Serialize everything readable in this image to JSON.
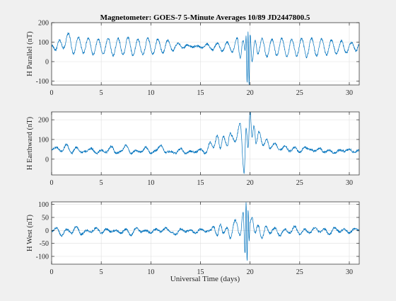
{
  "figure": {
    "title": "Magnetometer: GOES-7 5-Minute Averages 10/89 JD2447800.5",
    "xlabel": "Universal Time (days)"
  },
  "colors": {
    "background": "#f0f0f0",
    "axes_face": "#ffffff",
    "axes_line": "#262626",
    "grid": "#dfdfdf",
    "series": "#0072bd"
  },
  "chart_data": [
    {
      "type": "line",
      "ylabel": "H Parallel (nT)",
      "xlim": [
        0,
        31
      ],
      "ylim": [
        -120,
        200
      ],
      "xticks": [
        0,
        5,
        10,
        15,
        20,
        25,
        30
      ],
      "yticks": [
        -100,
        0,
        100,
        200
      ],
      "grid": true,
      "series": [
        {
          "t": [
            0,
            0.4,
            0.8,
            1.2,
            1.7,
            2.2,
            2.7,
            3.2,
            3.7,
            4.2,
            4.7,
            5.2,
            5.7,
            6.2,
            6.7,
            7.2,
            7.7,
            8.2,
            8.7,
            9.2,
            9.7,
            10.2,
            10.7,
            11.2,
            11.7,
            12.2,
            12.7,
            13.2,
            13.7,
            14.2,
            14.7,
            15.2,
            15.7,
            16.2,
            16.7,
            17.2,
            17.7,
            18.2,
            18.7,
            19.0,
            19.3,
            19.5,
            19.6,
            19.7,
            19.8,
            19.9,
            20.0,
            20.2,
            20.5,
            20.8,
            21.2,
            21.7,
            22.2,
            22.7,
            23.2,
            23.7,
            24.2,
            24.7,
            25.2,
            25.7,
            26.2,
            26.7,
            27.2,
            27.7,
            28.2,
            28.7,
            29.2,
            29.7,
            30.2,
            30.7,
            31
          ],
          "values": [
            85,
            60,
            110,
            70,
            145,
            40,
            125,
            45,
            120,
            35,
            115,
            40,
            120,
            30,
            120,
            35,
            125,
            30,
            115,
            35,
            120,
            40,
            115,
            45,
            110,
            55,
            95,
            70,
            85,
            75,
            80,
            70,
            90,
            60,
            95,
            55,
            100,
            50,
            120,
            20,
            110,
            60,
            130,
            -110,
            150,
            -120,
            140,
            0,
            110,
            40,
            120,
            25,
            115,
            30,
            120,
            25,
            115,
            30,
            120,
            25,
            120,
            30,
            115,
            35,
            110,
            40,
            105,
            45,
            100,
            55,
            90
          ]
        }
      ]
    },
    {
      "type": "line",
      "ylabel": "H Earthward (nT)",
      "xlim": [
        0,
        31
      ],
      "ylim": [
        -80,
        240
      ],
      "xticks": [
        0,
        5,
        10,
        15,
        20,
        25,
        30
      ],
      "yticks": [
        0,
        100,
        200
      ],
      "grid": true,
      "series": [
        {
          "t": [
            0,
            0.5,
            1.0,
            1.5,
            2.0,
            2.5,
            3.0,
            3.5,
            4.0,
            4.5,
            5.0,
            5.5,
            6.0,
            6.5,
            7.0,
            7.5,
            8.0,
            8.5,
            9.0,
            9.5,
            10.0,
            10.5,
            11.0,
            11.5,
            12.0,
            12.5,
            13.0,
            13.5,
            14.0,
            14.5,
            15.0,
            15.5,
            16.0,
            16.3,
            16.7,
            17.0,
            17.3,
            17.7,
            18.0,
            18.5,
            19.0,
            19.4,
            19.6,
            19.8,
            20.0,
            20.2,
            20.4,
            20.6,
            20.9,
            21.3,
            21.7,
            22.0,
            22.5,
            23.0,
            23.5,
            24.0,
            24.5,
            25.0,
            25.5,
            26.0,
            26.5,
            27.0,
            27.5,
            28.0,
            28.5,
            29.0,
            29.5,
            30.0,
            30.5,
            31
          ],
          "values": [
            50,
            60,
            40,
            75,
            30,
            60,
            35,
            40,
            55,
            30,
            45,
            35,
            65,
            30,
            40,
            70,
            30,
            45,
            35,
            60,
            30,
            45,
            70,
            35,
            40,
            30,
            55,
            30,
            40,
            35,
            50,
            30,
            85,
            60,
            120,
            55,
            115,
            70,
            130,
            90,
            180,
            -70,
            160,
            60,
            245,
            110,
            170,
            80,
            140,
            70,
            100,
            55,
            80,
            45,
            65,
            40,
            60,
            35,
            60,
            50,
            40,
            55,
            35,
            45,
            30,
            45,
            40,
            50,
            35,
            45
          ]
        }
      ]
    },
    {
      "type": "line",
      "ylabel": "H West (nT)",
      "xlim": [
        0,
        31
      ],
      "ylim": [
        -130,
        110
      ],
      "xticks": [
        0,
        5,
        10,
        15,
        20,
        25,
        30
      ],
      "yticks": [
        -100,
        -50,
        0,
        50,
        100
      ],
      "grid": true,
      "series": [
        {
          "t": [
            0,
            0.5,
            1.0,
            1.5,
            2.0,
            2.5,
            3.0,
            3.5,
            4.0,
            4.5,
            5.0,
            5.5,
            6.0,
            6.5,
            7.0,
            7.5,
            8.0,
            8.5,
            9.0,
            9.5,
            10.0,
            10.5,
            11.0,
            11.5,
            12.0,
            12.5,
            13.0,
            13.5,
            14.0,
            14.5,
            15.0,
            15.5,
            16.0,
            16.3,
            16.7,
            17.0,
            17.3,
            17.7,
            18.0,
            18.5,
            19.0,
            19.3,
            19.5,
            19.6,
            19.7,
            19.8,
            19.9,
            20.0,
            20.2,
            20.5,
            20.8,
            21.2,
            21.6,
            22.0,
            22.5,
            23.0,
            23.5,
            24.0,
            24.5,
            25.0,
            25.5,
            26.0,
            26.5,
            27.0,
            27.5,
            28.0,
            28.5,
            29.0,
            29.5,
            30.0,
            30.5,
            31
          ],
          "values": [
            -5,
            10,
            -20,
            5,
            -10,
            15,
            -15,
            0,
            -5,
            10,
            -10,
            5,
            -5,
            0,
            -10,
            5,
            -20,
            10,
            -5,
            0,
            -10,
            5,
            -5,
            10,
            -5,
            -15,
            5,
            -5,
            0,
            -10,
            5,
            -5,
            0,
            15,
            -20,
            25,
            -10,
            10,
            -30,
            40,
            -20,
            70,
            -90,
            110,
            -120,
            80,
            -40,
            30,
            50,
            -10,
            20,
            -30,
            15,
            -10,
            10,
            -20,
            5,
            -10,
            15,
            -15,
            5,
            -10,
            10,
            -5,
            5,
            -15,
            10,
            -5,
            5,
            -10,
            5,
            0
          ]
        }
      ]
    }
  ]
}
